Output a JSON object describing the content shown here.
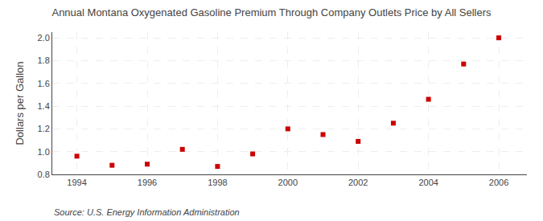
{
  "chart_data": {
    "type": "scatter",
    "title": "Annual Montana Oxygenated Gasoline Premium Through Company Outlets Price by All Sellers",
    "ylabel": "Dollars per Gallon",
    "annotations": [
      "Source: U.S. Energy Information Administration"
    ],
    "x": [
      1994,
      1995,
      1996,
      1997,
      1998,
      1999,
      2000,
      2001,
      2002,
      2003,
      2004,
      2005,
      2006
    ],
    "values": [
      0.96,
      0.88,
      0.89,
      1.02,
      0.87,
      0.98,
      1.2,
      1.15,
      1.09,
      1.25,
      1.46,
      1.77,
      2.0
    ],
    "color": "#cc0000",
    "marker": "square",
    "xlim": [
      1993.3,
      2006.8
    ],
    "ylim": [
      0.8,
      2.05
    ],
    "xticks": [
      1994,
      1996,
      1998,
      2000,
      2002,
      2004,
      2006
    ],
    "yticks": [
      0.8,
      {
        "value": 1,
        "label": "1.0"
      },
      1.2,
      1.4,
      1.6,
      1.8,
      {
        "value": 2,
        "label": "2.0"
      }
    ],
    "grid": true
  }
}
